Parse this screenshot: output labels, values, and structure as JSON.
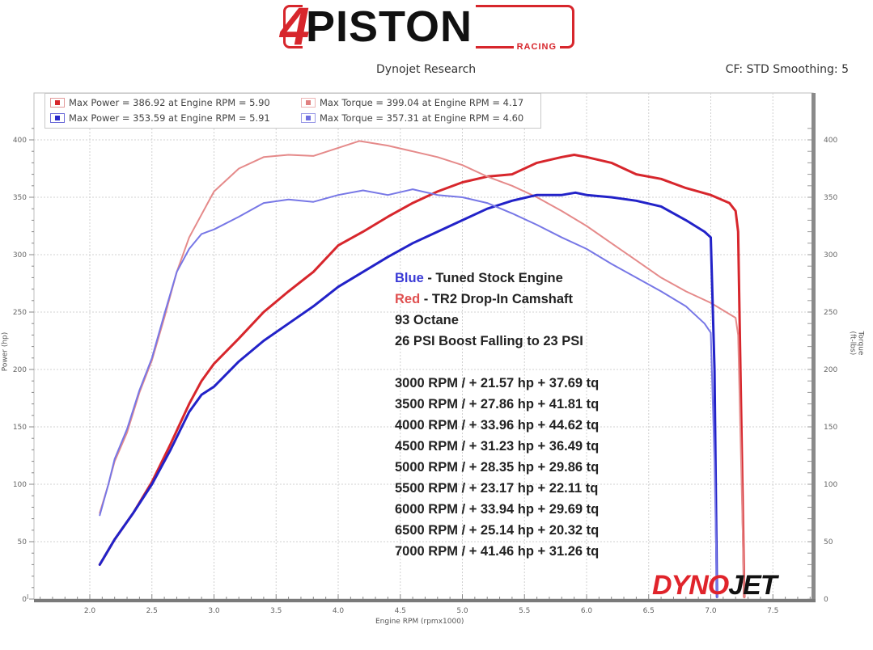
{
  "header": {
    "logo_four": "4",
    "logo_text": "PISTON",
    "logo_sub": "RACING",
    "subtitle": "Dynojet Research",
    "cf_text": "CF: STD Smoothing: 5"
  },
  "legend": [
    {
      "text": "Max Power = 386.92 at Engine RPM = 5.90",
      "color": "#d7262c"
    },
    {
      "text": "Max Torque = 399.04 at Engine RPM = 4.17",
      "color": "#e08080"
    },
    {
      "text": "Max Power = 353.59 at Engine RPM = 5.91",
      "color": "#2a2acb"
    },
    {
      "text": "Max Torque = 357.31 at Engine RPM = 4.60",
      "color": "#7070e0"
    }
  ],
  "annotation": {
    "blue_word": "Blue",
    "blue_rest": " - Tuned Stock Engine",
    "red_word": "Red",
    "red_rest": " - TR2 Drop-In Camshaft",
    "line3": "93 Octane",
    "line4": "26 PSI Boost Falling to 23 PSI"
  },
  "gains": [
    "3000 RPM / + 21.57 hp + 37.69 tq",
    "3500 RPM / + 27.86 hp + 41.81 tq",
    "4000 RPM / + 33.96 hp + 44.62 tq",
    "4500 RPM / + 31.23 hp + 36.49 tq",
    "5000 RPM / + 28.35 hp + 29.86 tq",
    "5500 RPM / + 23.17 hp + 22.11 tq",
    "6000 RPM / + 33.94 hp + 29.69 tq",
    "6500 RPM / + 25.14 hp + 20.32 tq",
    "7000 RPM / + 41.46 hp + 31.26 tq"
  ],
  "watermark": {
    "dyno": "DYNO",
    "jet": "JET"
  },
  "colors": {
    "red_power": "#d7262c",
    "red_torque": "#e58a8a",
    "blue_power": "#2222c8",
    "blue_torque": "#7777e6",
    "grid": "#d0d0d0",
    "blue_text": "#3a3ad6",
    "red_text": "#e05050"
  },
  "chart_data": {
    "type": "line",
    "title": "Dynojet Research",
    "xlabel": "Engine RPM (rpmx1000)",
    "ylabel_left": "Power (hp)",
    "ylabel_right": "Torque (ft-lbs)",
    "xlim": [
      1.45,
      7.85
    ],
    "ylim": [
      0,
      420
    ],
    "x_ticks": [
      2.0,
      2.5,
      3.0,
      3.5,
      4.0,
      4.5,
      5.0,
      5.5,
      6.0,
      6.5,
      7.0,
      7.5
    ],
    "y_ticks": [
      0,
      50,
      100,
      150,
      200,
      250,
      300,
      350,
      400
    ],
    "grid": true,
    "legend_position": "top-left",
    "series": [
      {
        "name": "Red Power (TR2 Drop-In Camshaft)",
        "color_key": "red_power",
        "width": 3,
        "x": [
          2.08,
          2.2,
          2.35,
          2.5,
          2.65,
          2.8,
          2.9,
          3.0,
          3.2,
          3.4,
          3.6,
          3.8,
          4.0,
          4.2,
          4.4,
          4.6,
          4.8,
          5.0,
          5.2,
          5.4,
          5.6,
          5.8,
          5.9,
          6.0,
          6.2,
          6.4,
          6.6,
          6.8,
          7.0,
          7.15,
          7.2,
          7.22,
          7.27
        ],
        "y": [
          30,
          52,
          75,
          102,
          135,
          170,
          190,
          205,
          227,
          250,
          268,
          285,
          308,
          320,
          333,
          345,
          355,
          363,
          368,
          370,
          380,
          385,
          387,
          385,
          380,
          370,
          366,
          358,
          352,
          345,
          338,
          320,
          2
        ]
      },
      {
        "name": "Red Torque (TR2 Drop-In Camshaft)",
        "color_key": "red_torque",
        "width": 2,
        "x": [
          2.08,
          2.15,
          2.2,
          2.3,
          2.4,
          2.5,
          2.6,
          2.7,
          2.8,
          2.9,
          3.0,
          3.2,
          3.4,
          3.6,
          3.8,
          4.0,
          4.17,
          4.4,
          4.6,
          4.8,
          5.0,
          5.2,
          5.4,
          5.6,
          5.8,
          6.0,
          6.2,
          6.4,
          6.6,
          6.8,
          7.0,
          7.2,
          7.22,
          7.27
        ],
        "y": [
          75,
          100,
          120,
          145,
          180,
          208,
          245,
          285,
          315,
          335,
          355,
          375,
          385,
          387,
          386,
          393,
          399,
          395,
          390,
          385,
          378,
          368,
          360,
          350,
          338,
          325,
          310,
          295,
          280,
          268,
          258,
          245,
          230,
          2
        ]
      },
      {
        "name": "Blue Power (Tuned Stock Engine)",
        "color_key": "blue_power",
        "width": 3,
        "x": [
          2.08,
          2.2,
          2.35,
          2.5,
          2.65,
          2.8,
          2.9,
          3.0,
          3.2,
          3.4,
          3.6,
          3.8,
          4.0,
          4.2,
          4.4,
          4.6,
          4.8,
          5.0,
          5.2,
          5.4,
          5.6,
          5.8,
          5.91,
          6.0,
          6.2,
          6.4,
          6.6,
          6.8,
          6.95,
          7.0,
          7.03,
          7.05
        ],
        "y": [
          30,
          52,
          75,
          100,
          130,
          163,
          178,
          185,
          207,
          225,
          240,
          255,
          272,
          285,
          298,
          310,
          320,
          330,
          340,
          347,
          352,
          352,
          354,
          352,
          350,
          347,
          342,
          330,
          320,
          315,
          200,
          2
        ]
      },
      {
        "name": "Blue Torque (Tuned Stock Engine)",
        "color_key": "blue_torque",
        "width": 2,
        "x": [
          2.08,
          2.15,
          2.2,
          2.3,
          2.4,
          2.5,
          2.6,
          2.7,
          2.8,
          2.9,
          3.0,
          3.2,
          3.4,
          3.6,
          3.8,
          4.0,
          4.2,
          4.4,
          4.6,
          4.8,
          5.0,
          5.2,
          5.4,
          5.6,
          5.8,
          6.0,
          6.2,
          6.4,
          6.6,
          6.8,
          6.95,
          7.0,
          7.03,
          7.05
        ],
        "y": [
          73,
          100,
          122,
          148,
          182,
          210,
          248,
          285,
          305,
          318,
          322,
          333,
          345,
          348,
          346,
          352,
          356,
          352,
          357,
          352,
          350,
          345,
          336,
          326,
          315,
          305,
          292,
          280,
          268,
          255,
          240,
          232,
          120,
          2
        ]
      }
    ]
  }
}
